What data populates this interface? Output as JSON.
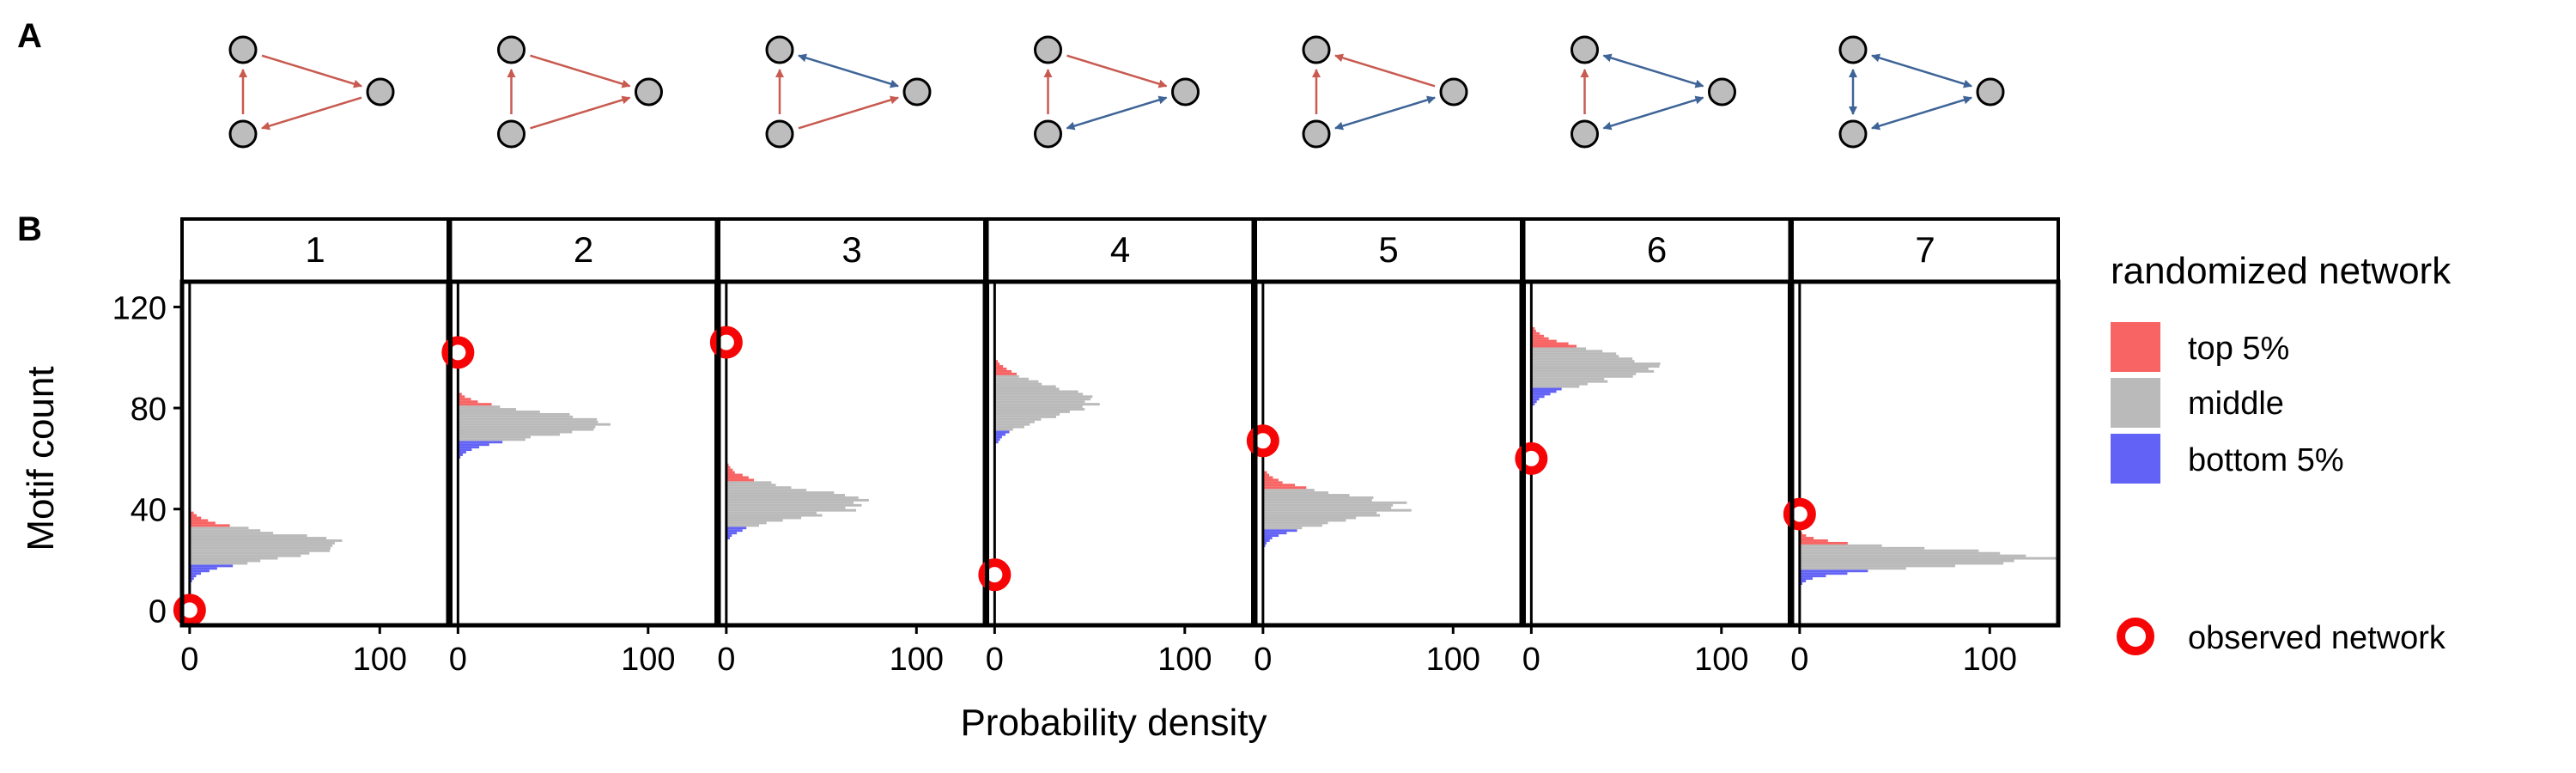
{
  "panel_labels": {
    "a": "A",
    "b": "B"
  },
  "colors": {
    "top": "#F86464",
    "middle": "#BABABA",
    "bottom": "#6262F6",
    "observed": "#F50505",
    "edge_unidirectional": "#C85A50",
    "edge_bidirectional": "#3E6497",
    "node_fill": "#BDBDBD"
  },
  "motifs": [
    {
      "id": "1",
      "edges": [
        [
          "bl",
          "tl",
          "red"
        ],
        [
          "tl",
          "r",
          "red"
        ],
        [
          "r",
          "bl",
          "red"
        ]
      ]
    },
    {
      "id": "2",
      "edges": [
        [
          "bl",
          "tl",
          "red"
        ],
        [
          "tl",
          "r",
          "red"
        ],
        [
          "bl",
          "r",
          "red"
        ]
      ]
    },
    {
      "id": "3",
      "edges": [
        [
          "bl",
          "tl",
          "red"
        ],
        [
          "tl",
          "r",
          "blue2"
        ],
        [
          "bl",
          "r",
          "red"
        ]
      ]
    },
    {
      "id": "4",
      "edges": [
        [
          "bl",
          "tl",
          "red"
        ],
        [
          "tl",
          "r",
          "red"
        ],
        [
          "bl",
          "r",
          "blue2"
        ]
      ]
    },
    {
      "id": "5",
      "edges": [
        [
          "bl",
          "tl",
          "red"
        ],
        [
          "r",
          "tl",
          "red"
        ],
        [
          "bl",
          "r",
          "blue2"
        ]
      ]
    },
    {
      "id": "6",
      "edges": [
        [
          "bl",
          "tl",
          "red"
        ],
        [
          "tl",
          "r",
          "blue2"
        ],
        [
          "bl",
          "r",
          "blue2"
        ]
      ]
    },
    {
      "id": "7",
      "edges": [
        [
          "bl",
          "tl",
          "blue2"
        ],
        [
          "tl",
          "r",
          "blue2"
        ],
        [
          "bl",
          "r",
          "blue2"
        ]
      ]
    }
  ],
  "legend": {
    "title": "randomized network",
    "items": [
      {
        "key": "top",
        "label": "top 5%"
      },
      {
        "key": "middle",
        "label": "middle"
      },
      {
        "key": "bottom",
        "label": "bottom 5%"
      }
    ],
    "observed_label": "observed network"
  },
  "chart_data": {
    "type": "bar",
    "orientation": "horizontal",
    "xlabel": "Probability density",
    "ylabel": "Motif count",
    "xlim": [
      -4,
      136
    ],
    "ylim": [
      -6,
      130
    ],
    "x_ticks": [
      0,
      100
    ],
    "y_ticks": [
      0,
      40,
      80,
      120
    ],
    "facets": [
      {
        "label": "1",
        "observed": 0,
        "dist": {
          "center": 25,
          "sd": 4.8,
          "peak": 83,
          "top_from": 33,
          "bottom_to": 17
        }
      },
      {
        "label": "2",
        "observed": 102,
        "dist": {
          "center": 73,
          "sd": 4.5,
          "peak": 79,
          "top_from": 81,
          "bottom_to": 66
        }
      },
      {
        "label": "3",
        "observed": 106,
        "dist": {
          "center": 42,
          "sd": 5.2,
          "peak": 72,
          "top_from": 51,
          "bottom_to": 32
        }
      },
      {
        "label": "4",
        "observed": 14,
        "dist": {
          "center": 82,
          "sd": 6.2,
          "peak": 52,
          "top_from": 93,
          "bottom_to": 70
        }
      },
      {
        "label": "5",
        "observed": 67,
        "dist": {
          "center": 40,
          "sd": 5.2,
          "peak": 73,
          "top_from": 48,
          "bottom_to": 31
        }
      },
      {
        "label": "6",
        "observed": 60,
        "dist": {
          "center": 96,
          "sd": 5.6,
          "peak": 64,
          "top_from": 104,
          "bottom_to": 87
        }
      },
      {
        "label": "7",
        "observed": 38,
        "dist": {
          "center": 20,
          "sd": 3.3,
          "peak": 128,
          "top_from": 26,
          "bottom_to": 15
        }
      }
    ]
  }
}
